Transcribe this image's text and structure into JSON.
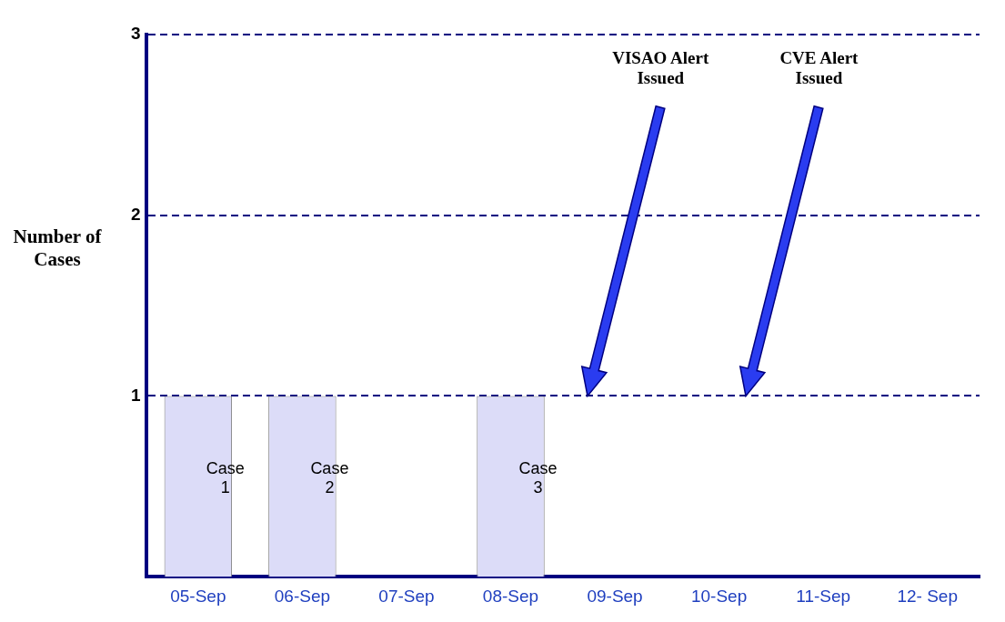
{
  "chart_data": {
    "type": "bar",
    "ylabel": "Number of Cases",
    "categories": [
      "05-Sep",
      "06-Sep",
      "07-Sep",
      "08-Sep",
      "09-Sep",
      "10-Sep",
      "11-Sep",
      "12- Sep"
    ],
    "values": [
      1,
      1,
      null,
      1,
      null,
      null,
      null,
      null
    ],
    "color": "#dcdcf8",
    "ylim": [
      0,
      3
    ],
    "yticks": [
      1,
      2,
      3
    ],
    "grid": "y",
    "line_style": "dashed",
    "legend": false,
    "annotations": [
      "Case 1",
      "Case 2",
      "Case 3",
      "VISAO Alert Issued",
      "CVE Alert Issued"
    ]
  }
}
